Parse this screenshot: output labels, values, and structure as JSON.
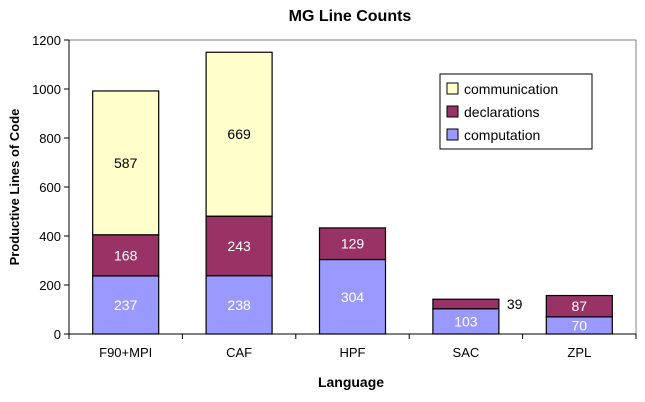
{
  "chart_data": {
    "type": "bar",
    "stacked": true,
    "title": "MG Line Counts",
    "xlabel": "Language",
    "ylabel": "Productive Lines of Code",
    "categories": [
      "F90+MPI",
      "CAF",
      "HPF",
      "SAC",
      "ZPL"
    ],
    "ylim": [
      0,
      1200
    ],
    "yticks": [
      "0",
      "200",
      "400",
      "600",
      "800",
      "1000",
      "1200"
    ],
    "grid": false,
    "legend_position": "top-right",
    "series": [
      {
        "name": "computation",
        "values": [
          237,
          238,
          304,
          103,
          70
        ],
        "color": "#9999ff",
        "label_color": "#ffffff"
      },
      {
        "name": "declarations",
        "values": [
          168,
          243,
          129,
          39,
          87
        ],
        "color": "#993366",
        "label_color": "#ffffff"
      },
      {
        "name": "communication",
        "values": [
          587,
          669,
          0,
          0,
          0
        ],
        "color": "#ffffcc",
        "label_color": "#000000"
      }
    ],
    "legend": [
      "communication",
      "declarations",
      "computation"
    ]
  }
}
